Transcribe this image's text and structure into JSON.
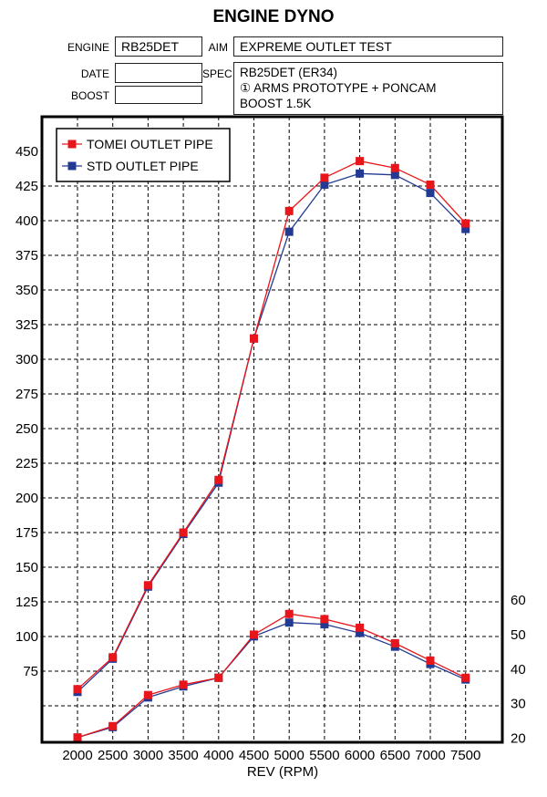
{
  "header": {
    "title": "ENGINE DYNO",
    "engine_label": "ENGINE",
    "engine_value": "RB25DET",
    "aim_label": "AIM",
    "aim_value": "EXPREME OUTLET TEST",
    "date_label": "DATE",
    "date_value": "",
    "spec_label": "SPEC",
    "spec_lines": [
      "RB25DET (ER34)",
      "① ARMS PROTOTYPE + PONCAM",
      "BOOST 1.5K"
    ],
    "boost_label": "BOOST",
    "boost_value": ""
  },
  "chart_data": {
    "type": "line",
    "xlabel": "REV (RPM)",
    "x": [
      2000,
      2500,
      3000,
      3500,
      4000,
      4500,
      5000,
      5500,
      6000,
      6500,
      7000,
      7500
    ],
    "left_axis": {
      "ylim": [
        0,
        450
      ],
      "ticks": [
        75,
        100,
        125,
        150,
        175,
        200,
        225,
        250,
        275,
        300,
        325,
        350,
        375,
        400,
        425,
        450
      ]
    },
    "right_axis": {
      "ylim": [
        20,
        60
      ],
      "ticks": [
        20,
        30,
        40,
        50,
        60
      ]
    },
    "grid": true,
    "legend_position": "top-left",
    "series": [
      {
        "name": "TOMEI OUTLET PIPE",
        "axis": "left",
        "color": "#e8161b",
        "values": [
          62,
          85,
          137,
          175,
          213,
          315,
          407,
          431,
          443,
          438,
          426,
          398
        ]
      },
      {
        "name": "STD OUTLET PIPE",
        "axis": "left",
        "color": "#233a93",
        "values": [
          60,
          84,
          136,
          174,
          211,
          315,
          392,
          426,
          434,
          433,
          420,
          394
        ]
      },
      {
        "name": "TOMEI OUTLET PIPE",
        "axis": "right",
        "color": "#e8161b",
        "values": [
          20.2,
          23.5,
          32.5,
          35.5,
          37.5,
          50.0,
          56.0,
          54.5,
          52.0,
          47.5,
          42.5,
          37.5
        ]
      },
      {
        "name": "STD OUTLET PIPE",
        "axis": "right",
        "color": "#233a93",
        "values": [
          20.2,
          23.2,
          31.8,
          35.0,
          37.5,
          49.5,
          53.5,
          53.0,
          50.5,
          46.5,
          41.5,
          37.0
        ]
      }
    ]
  }
}
